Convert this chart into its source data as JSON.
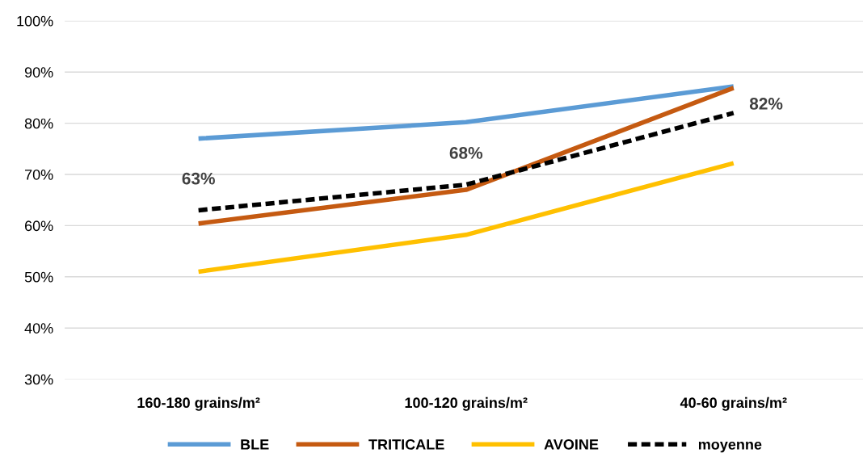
{
  "chart_data": {
    "type": "line",
    "categories": [
      "160-180 grains/m²",
      "100-120 grains/m²",
      "40-60 grains/m²"
    ],
    "series": [
      {
        "name": "BLE",
        "color": "#5b9bd5",
        "values": [
          77.0,
          80.2,
          87.2
        ]
      },
      {
        "name": "TRITICALE",
        "color": "#c55a11",
        "values": [
          60.4,
          67.0,
          86.9
        ]
      },
      {
        "name": "AVOINE",
        "color": "#ffc000",
        "values": [
          51.0,
          58.2,
          72.2
        ]
      },
      {
        "name": "moyenne",
        "color": "#000000",
        "values": [
          63,
          68,
          82
        ],
        "line_style": "dashed",
        "value_labels": [
          "63%",
          "68%",
          "82%"
        ]
      }
    ],
    "ylim": [
      30,
      100
    ],
    "yticks": [
      {
        "value": 30,
        "label": "30%"
      },
      {
        "value": 40,
        "label": "40%"
      },
      {
        "value": 50,
        "label": "50%"
      },
      {
        "value": 60,
        "label": "60%"
      },
      {
        "value": 70,
        "label": "70%"
      },
      {
        "value": 80,
        "label": "80%"
      },
      {
        "value": 90,
        "label": "90%"
      },
      {
        "value": 100,
        "label": "100%"
      }
    ],
    "grid": "y",
    "legend": "bottom",
    "marker": "none",
    "line_style": "solid"
  }
}
